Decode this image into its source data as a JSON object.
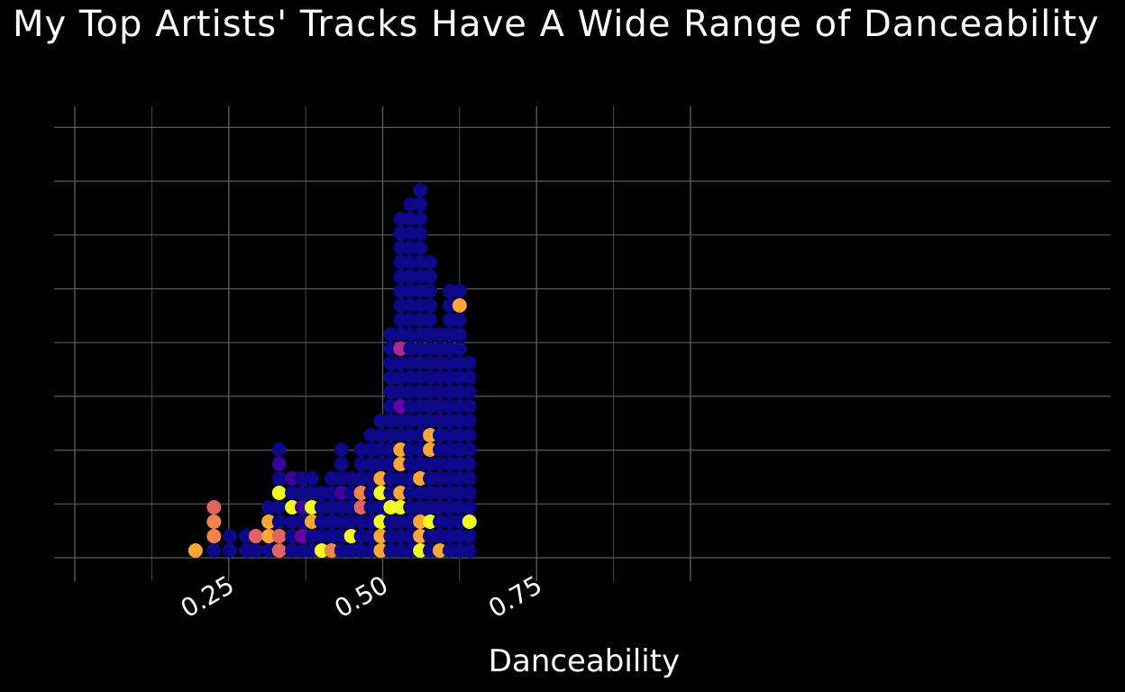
{
  "chart_data": {
    "type": "scatter",
    "subtype": "dot-plot (stacked dots)",
    "title": "My Top Artists' Tracks Have A Wide Range of Danceability",
    "xlabel": "Danceability",
    "ylabel": "",
    "xlim": [
      0.0,
      1.05
    ],
    "x_ticks": [
      0.25,
      0.5,
      0.75
    ],
    "x_tick_labels": [
      "0.25",
      "0.50",
      "0.75"
    ],
    "grid": true,
    "y_ticks_shown": false,
    "palette": [
      "#0d0887",
      "#3a049a",
      "#6a00a8",
      "#b12a90",
      "#e16462",
      "#f1844b",
      "#fca636",
      "#f0f921"
    ],
    "background": "#000000",
    "grid_color": "#5a5a5a",
    "columns": [
      {
        "x": 0.196,
        "dots": [
          6
        ]
      },
      {
        "x": 0.226,
        "dots": [
          0,
          5,
          5,
          4
        ]
      },
      {
        "x": 0.252,
        "dots": [
          0,
          0
        ]
      },
      {
        "x": 0.278,
        "dots": [
          0,
          0
        ]
      },
      {
        "x": 0.294,
        "dots": [
          0,
          4
        ]
      },
      {
        "x": 0.315,
        "dots": [
          0,
          6,
          6,
          0
        ]
      },
      {
        "x": 0.332,
        "dots": [
          4,
          4,
          0,
          0,
          7,
          0,
          1,
          0
        ]
      },
      {
        "x": 0.353,
        "dots": [
          0,
          0,
          0,
          7,
          0,
          1
        ]
      },
      {
        "x": 0.369,
        "dots": [
          0,
          2,
          0,
          1,
          0,
          0
        ]
      },
      {
        "x": 0.385,
        "dots": [
          0,
          0,
          6,
          7,
          0,
          0
        ]
      },
      {
        "x": 0.401,
        "dots": [
          7,
          0,
          0,
          0,
          0
        ]
      },
      {
        "x": 0.417,
        "dots": [
          5,
          0,
          0,
          0,
          0,
          0
        ]
      },
      {
        "x": 0.433,
        "dots": [
          0,
          0,
          0,
          0,
          1,
          0,
          0,
          0
        ]
      },
      {
        "x": 0.449,
        "dots": [
          0,
          7,
          0,
          0,
          0,
          0
        ]
      },
      {
        "x": 0.465,
        "dots": [
          0,
          0,
          0,
          4,
          5,
          0,
          0,
          0
        ]
      },
      {
        "x": 0.481,
        "dots": [
          0,
          0,
          0,
          0,
          0,
          0,
          0,
          0,
          0
        ]
      },
      {
        "x": 0.497,
        "dots": [
          6,
          6,
          7,
          0,
          7,
          6,
          0,
          0,
          0,
          0
        ]
      },
      {
        "x": 0.513,
        "dots": [
          0,
          0,
          0,
          7,
          0,
          0,
          0,
          0,
          0,
          0,
          0,
          0,
          0,
          0,
          0,
          0
        ]
      },
      {
        "x": 0.529,
        "dots": [
          0,
          0,
          0,
          7,
          6,
          0,
          6,
          6,
          0,
          0,
          2,
          0,
          0,
          0,
          3,
          0,
          0,
          0,
          0,
          0,
          0,
          0,
          0,
          0
        ]
      },
      {
        "x": 0.545,
        "dots": [
          0,
          0,
          0,
          0,
          0,
          0,
          0,
          0,
          0,
          0,
          0,
          0,
          0,
          0,
          0,
          0,
          0,
          0,
          0,
          0,
          0,
          0,
          0,
          0,
          0
        ]
      },
      {
        "x": 0.561,
        "dots": [
          7,
          6,
          6,
          0,
          0,
          6,
          0,
          0,
          0,
          0,
          0,
          0,
          0,
          0,
          0,
          0,
          0,
          0,
          0,
          0,
          0,
          0,
          0,
          0,
          0,
          0
        ]
      },
      {
        "x": 0.577,
        "dots": [
          0,
          0,
          7,
          0,
          0,
          0,
          0,
          6,
          6,
          0,
          0,
          0,
          0,
          0,
          0,
          0,
          0,
          0,
          0,
          0,
          0
        ]
      },
      {
        "x": 0.593,
        "dots": [
          6,
          0,
          0,
          0,
          0,
          0,
          0,
          0,
          0,
          0,
          0,
          0,
          0,
          0,
          0,
          0
        ]
      },
      {
        "x": 0.609,
        "dots": [
          0,
          0,
          0,
          0,
          0,
          0,
          0,
          0,
          0,
          0,
          0,
          0,
          0,
          0,
          0,
          0,
          0,
          0,
          0
        ]
      },
      {
        "x": 0.625,
        "dots": [
          0,
          0,
          0,
          0,
          0,
          0,
          0,
          0,
          0,
          0,
          0,
          0,
          0,
          0,
          0,
          0,
          0,
          6,
          0
        ]
      },
      {
        "x": 0.641,
        "dots": [
          0,
          0,
          7,
          0,
          0,
          0,
          0,
          0,
          0,
          0,
          0,
          0,
          0,
          0
        ]
      }
    ]
  },
  "x_axis": {
    "tick_labels": [
      "0.25",
      "0.50",
      "0.75"
    ]
  }
}
